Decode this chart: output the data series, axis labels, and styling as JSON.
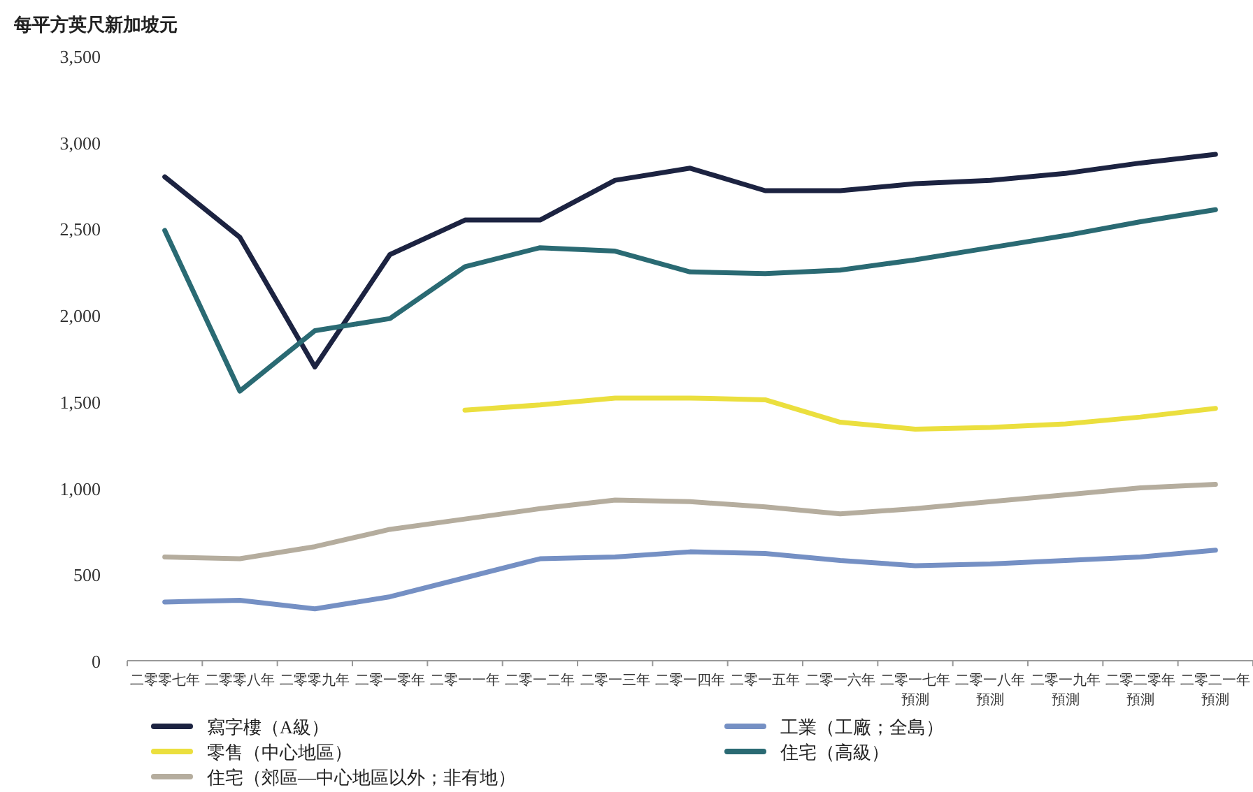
{
  "chart_data": {
    "type": "line",
    "ylabel": "每平方英尺新加坡元",
    "categories": [
      "二零零七年",
      "二零零八年",
      "二零零九年",
      "二零一零年",
      "二零一一年",
      "二零一二年",
      "二零一三年",
      "二零一四年",
      "二零一五年",
      "二零一六年",
      "二零一七年預測",
      "二零一八年預測",
      "二零一九年預測",
      "二零二零年預測",
      "二零二一年預測"
    ],
    "ylim": [
      0,
      3500
    ],
    "yticks": [
      {
        "value": 0,
        "label": "0"
      },
      {
        "value": 500,
        "label": "500"
      },
      {
        "value": 1000,
        "label": "1,000"
      },
      {
        "value": 1500,
        "label": "1,500"
      },
      {
        "value": 2000,
        "label": "2,000"
      },
      {
        "value": 2500,
        "label": "2,500"
      },
      {
        "value": 3000,
        "label": "3,000"
      },
      {
        "value": 3500,
        "label": "3,500"
      }
    ],
    "grid": false,
    "legend": "bottom",
    "marker": "none",
    "line_style": "solid",
    "series": [
      {
        "name": "寫字樓（A級）",
        "color": "#1c2341",
        "values": [
          2800,
          2450,
          1700,
          2350,
          2550,
          2550,
          2780,
          2850,
          2720,
          2720,
          2760,
          2780,
          2820,
          2880,
          2930
        ]
      },
      {
        "name": "工業（工廠；全島）",
        "color": "#7590c4",
        "values": [
          340,
          350,
          300,
          370,
          480,
          590,
          600,
          630,
          620,
          580,
          550,
          560,
          580,
          600,
          640
        ]
      },
      {
        "name": "零售（中心地區）",
        "color": "#ebdf3e",
        "values": [
          null,
          null,
          null,
          null,
          1450,
          1480,
          1520,
          1520,
          1510,
          1380,
          1340,
          1350,
          1370,
          1410,
          1460
        ]
      },
      {
        "name": "住宅（高級）",
        "color": "#2a6a73",
        "values": [
          2490,
          1560,
          1910,
          1980,
          2280,
          2390,
          2370,
          2250,
          2240,
          2260,
          2320,
          2390,
          2460,
          2540,
          2610
        ]
      },
      {
        "name": "住宅（郊區—中心地區以外；非有地）",
        "color": "#b5ad9e",
        "values": [
          600,
          590,
          660,
          760,
          820,
          880,
          930,
          920,
          890,
          850,
          880,
          920,
          960,
          1000,
          1020
        ]
      }
    ]
  }
}
